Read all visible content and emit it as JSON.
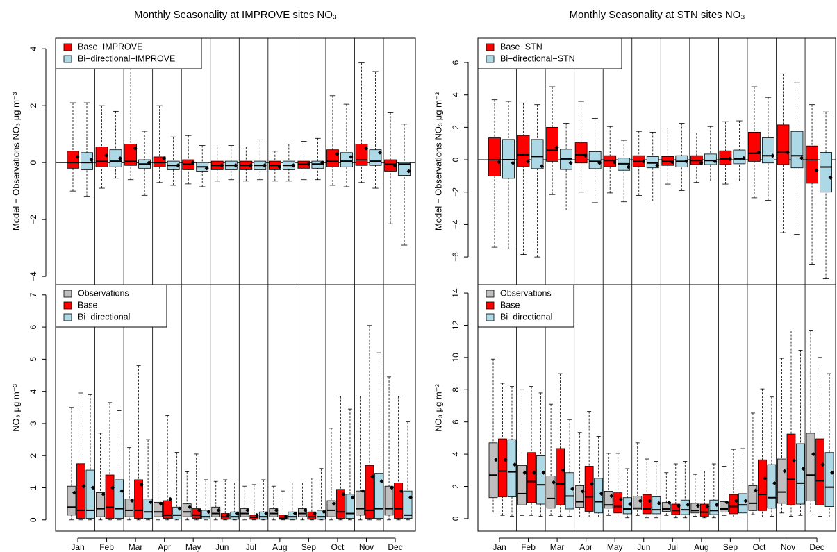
{
  "chart_data": [
    {
      "type": "box",
      "title": "Monthly Seasonality at IMPROVE sites NO₃",
      "ylabel": "Model − Observations NO₃ μg m⁻³",
      "ylim": [
        -4.29,
        4.37
      ],
      "yticks": [
        {
          "value": -4,
          "label": "−4"
        },
        {
          "value": -2,
          "label": "−2"
        },
        0,
        2,
        4
      ],
      "reference_line": 0,
      "legend": "upper-left",
      "series": [
        {
          "name": "Base−IMPROVE",
          "color": "#ff0000",
          "whislo": [
            -1.0,
            -0.9,
            -0.6,
            -0.7,
            -0.75,
            -0.65,
            -0.65,
            -0.65,
            -0.6,
            -0.8,
            -0.7,
            -2.15
          ],
          "q1": [
            -0.2,
            -0.15,
            -0.1,
            -0.15,
            -0.25,
            -0.25,
            -0.25,
            -0.25,
            -0.2,
            -0.15,
            -0.1,
            -0.3
          ],
          "med": [
            0,
            0.05,
            0.05,
            0,
            -0.05,
            -0.1,
            -0.1,
            -0.1,
            -0.05,
            0.05,
            0.1,
            -0.05
          ],
          "q3": [
            0.4,
            0.55,
            0.65,
            0.2,
            0.1,
            0.05,
            0.05,
            0.05,
            0.05,
            0.45,
            0.65,
            0.1
          ],
          "whishi": [
            2.1,
            2.0,
            4.3,
            2.0,
            0.95,
            0.55,
            0.55,
            0.4,
            0.75,
            2.35,
            3.5,
            1.75
          ],
          "mean": [
            0.2,
            0.25,
            0.5,
            0.15,
            0.0,
            -0.1,
            -0.1,
            -0.15,
            -0.05,
            0.3,
            0.5,
            -0.1
          ]
        },
        {
          "name": "Bi−directional−IMPROVE",
          "color": "#add8e6",
          "whislo": [
            -1.2,
            -0.55,
            -1.15,
            -0.8,
            -0.85,
            -0.6,
            -0.6,
            -0.65,
            -0.6,
            -0.85,
            -0.9,
            -2.9
          ],
          "q1": [
            -0.25,
            -0.15,
            -0.2,
            -0.25,
            -0.3,
            -0.25,
            -0.25,
            -0.25,
            -0.2,
            -0.15,
            -0.1,
            -0.45
          ],
          "med": [
            0,
            0.05,
            -0.05,
            -0.1,
            -0.15,
            -0.1,
            -0.1,
            -0.1,
            -0.05,
            0.05,
            0.05,
            -0.05
          ],
          "q3": [
            0.35,
            0.45,
            0.1,
            0.05,
            0.0,
            0.05,
            0.05,
            0.05,
            0.05,
            0.35,
            0.45,
            0.0
          ],
          "whishi": [
            2.1,
            1.8,
            1.1,
            0.9,
            0.6,
            0.6,
            0.8,
            0.65,
            0.85,
            2.05,
            3.2,
            1.35
          ],
          "mean": [
            0.1,
            0.15,
            0.0,
            -0.1,
            -0.2,
            -0.1,
            -0.1,
            -0.1,
            0.0,
            0.2,
            0.35,
            -0.3
          ]
        }
      ]
    },
    {
      "type": "box",
      "ylabel": "NO₃ μg m⁻³",
      "categories": [
        "Jan",
        "Feb",
        "Mar",
        "Apr",
        "May",
        "Jun",
        "Jul",
        "Aug",
        "Sep",
        "Oct",
        "Nov",
        "Dec"
      ],
      "ylim": [
        -0.35,
        7.32
      ],
      "yticks": [
        0,
        1,
        2,
        3,
        4,
        5,
        6,
        7
      ],
      "legend": "upper-left",
      "series": [
        {
          "name": "Observations",
          "color": "#bebebe",
          "whislo": [
            0,
            0,
            0,
            0,
            0,
            0,
            0,
            0,
            0,
            0,
            0,
            0
          ],
          "q1": [
            0.15,
            0.1,
            0.1,
            0.1,
            0.1,
            0.1,
            0.1,
            0.1,
            0.1,
            0.1,
            0.15,
            0.15
          ],
          "med": [
            0.4,
            0.35,
            0.3,
            0.25,
            0.25,
            0.2,
            0.2,
            0.2,
            0.2,
            0.3,
            0.35,
            0.35
          ],
          "q3": [
            1.05,
            0.85,
            0.65,
            0.55,
            0.5,
            0.4,
            0.35,
            0.35,
            0.35,
            0.6,
            0.9,
            1.05
          ],
          "whishi": [
            3.5,
            2.7,
            2.25,
            1.8,
            1.5,
            1.2,
            1.05,
            1.05,
            1.15,
            2.85,
            3.85,
            4.45
          ],
          "mean": [
            0.85,
            0.8,
            0.6,
            0.5,
            0.4,
            0.3,
            0.3,
            0.3,
            0.3,
            0.5,
            0.9,
            1.0
          ]
        },
        {
          "name": "Base",
          "color": "#ff0000",
          "whislo": [
            0,
            0,
            0,
            0,
            0,
            0,
            0,
            0,
            0,
            0,
            0,
            0
          ],
          "q1": [
            0.05,
            0.05,
            0.05,
            0.05,
            0.05,
            0.02,
            0.02,
            0.02,
            0.02,
            0.05,
            0.05,
            0.05
          ],
          "med": [
            0.3,
            0.4,
            0.3,
            0.15,
            0.15,
            0.1,
            0.08,
            0.05,
            0.1,
            0.25,
            0.3,
            0.35
          ],
          "q3": [
            1.75,
            1.4,
            1.25,
            0.6,
            0.35,
            0.2,
            0.15,
            0.15,
            0.25,
            0.95,
            1.7,
            1.15
          ],
          "whishi": [
            3.95,
            3.65,
            4.8,
            3.25,
            2.05,
            1.25,
            1.1,
            0.9,
            1.3,
            3.85,
            6.05,
            3.85
          ],
          "mean": [
            1.05,
            1.0,
            1.1,
            0.65,
            0.3,
            0.15,
            0.15,
            0.1,
            0.2,
            0.8,
            1.35,
            0.9
          ]
        },
        {
          "name": "Bi−directional",
          "color": "#add8e6",
          "whislo": [
            0,
            0,
            0,
            0,
            0,
            0,
            0,
            0,
            0,
            0,
            0,
            0
          ],
          "q1": [
            0.05,
            0.05,
            0.05,
            0.03,
            0.03,
            0.02,
            0.02,
            0.02,
            0.02,
            0.05,
            0.05,
            0.05
          ],
          "med": [
            0.3,
            0.35,
            0.25,
            0.15,
            0.1,
            0.1,
            0.1,
            0.1,
            0.1,
            0.2,
            0.35,
            0.15
          ],
          "q3": [
            1.55,
            1.25,
            0.65,
            0.4,
            0.3,
            0.25,
            0.25,
            0.25,
            0.3,
            0.8,
            1.45,
            0.9
          ],
          "whishi": [
            3.9,
            3.4,
            2.5,
            2.1,
            1.25,
            1.15,
            1.25,
            1.15,
            1.6,
            3.45,
            5.2,
            3.05
          ],
          "mean": [
            1.0,
            0.9,
            0.55,
            0.35,
            0.25,
            0.2,
            0.2,
            0.2,
            0.25,
            0.7,
            1.2,
            0.7
          ]
        }
      ]
    },
    {
      "type": "box",
      "title": "Monthly Seasonality at STN sites NO₃",
      "ylabel": "Model − Observations NO₃ μg m⁻³",
      "ylim": [
        -7.71,
        7.5
      ],
      "yticks": [
        {
          "value": -6,
          "label": "−6"
        },
        {
          "value": -4,
          "label": "−4"
        },
        {
          "value": -2,
          "label": "−2"
        },
        0,
        2,
        4,
        6
      ],
      "reference_line": 0,
      "legend": "upper-left",
      "series": [
        {
          "name": "Base−STN",
          "color": "#ff0000",
          "whislo": [
            -5.4,
            -5.85,
            -2.15,
            -2.0,
            -2.05,
            -2.2,
            -1.5,
            -1.4,
            -1.5,
            -2.35,
            -4.5,
            -6.45
          ],
          "q1": [
            -1.0,
            -0.4,
            -0.1,
            -0.2,
            -0.4,
            -0.4,
            -0.35,
            -0.3,
            -0.3,
            -0.1,
            -0.3,
            -1.45
          ],
          "med": [
            0,
            0.3,
            0.6,
            0.3,
            -0.05,
            -0.1,
            -0.1,
            -0.05,
            0.05,
            0.4,
            0.45,
            0.0
          ],
          "q3": [
            1.35,
            1.5,
            2.0,
            1.05,
            0.25,
            0.25,
            0.2,
            0.25,
            0.55,
            1.7,
            2.15,
            0.85
          ],
          "whishi": [
            3.7,
            3.5,
            4.5,
            3.6,
            2.05,
            1.75,
            1.95,
            1.65,
            2.35,
            4.5,
            5.3,
            3.4
          ],
          "mean": [
            -0.15,
            -0.1,
            0.75,
            0.25,
            -0.15,
            -0.1,
            -0.15,
            -0.2,
            0.05,
            0.45,
            0.45,
            -0.65
          ]
        },
        {
          "name": "Bi−directional−STN",
          "color": "#add8e6",
          "whislo": [
            -5.5,
            -6.0,
            -3.1,
            -2.65,
            -2.6,
            -2.55,
            -1.9,
            -1.3,
            -1.3,
            -2.5,
            -4.6,
            -7.35
          ],
          "q1": [
            -1.15,
            -0.55,
            -0.6,
            -0.55,
            -0.65,
            -0.5,
            -0.45,
            -0.3,
            -0.25,
            -0.2,
            -0.5,
            -2.0
          ],
          "med": [
            0,
            0.2,
            0.05,
            -0.1,
            -0.25,
            -0.2,
            -0.1,
            -0.05,
            0.05,
            0.25,
            0.25,
            -0.45
          ],
          "q3": [
            1.25,
            1.25,
            0.65,
            0.5,
            0.1,
            0.2,
            0.25,
            0.35,
            0.6,
            1.35,
            1.75,
            0.45
          ],
          "whishi": [
            3.6,
            3.4,
            2.25,
            2.55,
            1.2,
            1.7,
            2.25,
            2.05,
            2.4,
            3.85,
            4.75,
            2.95
          ],
          "mean": [
            -0.2,
            -0.4,
            -0.2,
            -0.2,
            -0.45,
            -0.35,
            -0.1,
            -0.1,
            0.1,
            0.25,
            0.1,
            -1.1
          ]
        }
      ]
    },
    {
      "type": "box",
      "ylabel": "NO₃ μg m⁻³",
      "categories": [
        "Jan",
        "Feb",
        "Mar",
        "Apr",
        "May",
        "Jun",
        "Jul",
        "Aug",
        "Sep",
        "Oct",
        "Nov",
        "Dec"
      ],
      "ylim": [
        -0.78,
        14.52
      ],
      "yticks": [
        0,
        2,
        4,
        6,
        8,
        10,
        12,
        14
      ],
      "legend": "upper-left",
      "series": [
        {
          "name": "Observations",
          "color": "#bebebe",
          "whislo": [
            0.4,
            0.2,
            0.2,
            0.1,
            0.2,
            0.2,
            0.2,
            0.15,
            0.2,
            0.25,
            0.35,
            0.4
          ],
          "q1": [
            1.3,
            0.85,
            0.65,
            0.7,
            0.65,
            0.55,
            0.45,
            0.35,
            0.4,
            0.5,
            0.95,
            1.1
          ],
          "med": [
            2.7,
            1.55,
            1.25,
            1.05,
            0.85,
            0.65,
            0.6,
            0.5,
            0.6,
            0.95,
            1.65,
            2.7
          ],
          "q3": [
            4.7,
            3.3,
            2.65,
            2.05,
            1.7,
            1.4,
            1.0,
            0.95,
            1.05,
            2.05,
            3.7,
            5.3
          ],
          "whishi": [
            9.9,
            8.0,
            7.1,
            5.35,
            4.05,
            4.7,
            2.85,
            2.75,
            3.25,
            6.55,
            9.95,
            11.7
          ],
          "mean": [
            3.65,
            2.85,
            2.25,
            1.7,
            1.4,
            1.1,
            1.0,
            0.8,
            1.0,
            1.75,
            2.95,
            4.0
          ]
        },
        {
          "name": "Base",
          "color": "#ff0000",
          "whislo": [
            0.2,
            0.2,
            0.15,
            0.1,
            0.1,
            0.05,
            0.05,
            0.05,
            0.1,
            0.1,
            0.15,
            0.15
          ],
          "q1": [
            1.35,
            1.0,
            0.85,
            0.45,
            0.35,
            0.3,
            0.25,
            0.15,
            0.3,
            0.5,
            0.85,
            0.85
          ],
          "med": [
            2.95,
            2.3,
            2.15,
            1.35,
            0.75,
            0.6,
            0.5,
            0.4,
            0.75,
            1.5,
            2.45,
            2.35
          ],
          "q3": [
            4.95,
            4.1,
            4.35,
            3.25,
            1.65,
            1.5,
            0.9,
            0.9,
            1.5,
            3.65,
            5.25,
            4.95
          ],
          "whishi": [
            8.4,
            8.2,
            9.0,
            6.65,
            4.05,
            3.7,
            3.4,
            2.95,
            4.3,
            8.05,
            11.65,
            10.0
          ],
          "mean": [
            3.65,
            2.85,
            3.0,
            2.15,
            1.2,
            1.1,
            0.8,
            0.75,
            1.1,
            2.5,
            3.6,
            3.35
          ]
        },
        {
          "name": "Bi−directional",
          "color": "#add8e6",
          "whislo": [
            0.15,
            0.15,
            0.15,
            0.1,
            0.05,
            0.05,
            0.05,
            0.05,
            0.1,
            0.15,
            0.2,
            0.1
          ],
          "q1": [
            1.35,
            0.9,
            0.6,
            0.35,
            0.3,
            0.3,
            0.25,
            0.25,
            0.35,
            0.65,
            0.9,
            0.75
          ],
          "med": [
            2.9,
            2.1,
            1.4,
            1.05,
            0.6,
            0.55,
            0.55,
            0.5,
            0.85,
            1.3,
            2.2,
            1.95
          ],
          "q3": [
            4.9,
            3.9,
            2.85,
            2.5,
            1.3,
            1.35,
            1.15,
            1.15,
            1.55,
            3.35,
            4.65,
            4.1
          ],
          "whishi": [
            8.2,
            7.8,
            6.15,
            5.1,
            3.1,
            3.55,
            3.55,
            3.4,
            4.35,
            7.55,
            10.45,
            9.0
          ],
          "mean": [
            3.35,
            2.85,
            1.85,
            1.55,
            0.9,
            0.95,
            0.85,
            0.85,
            1.1,
            2.2,
            3.1,
            2.85
          ]
        }
      ]
    }
  ]
}
